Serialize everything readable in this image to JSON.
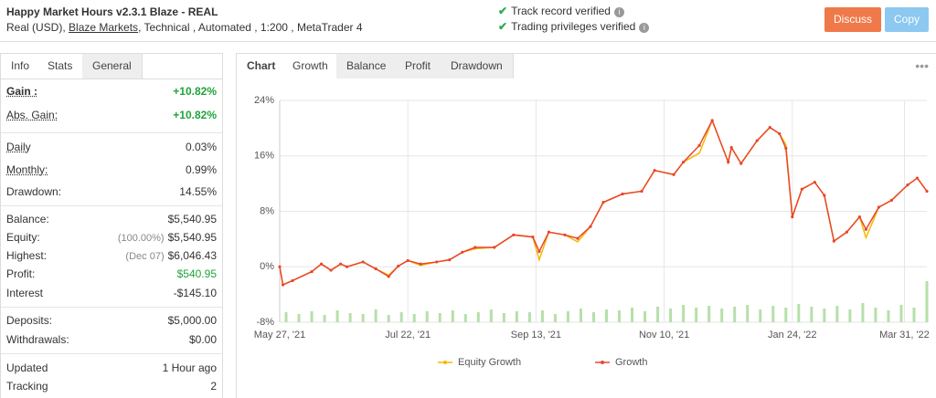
{
  "header": {
    "title": "Happy Market Hours v2.3.1 Blaze - REAL",
    "account": "Real (USD),",
    "broker": "Blaze Markets",
    "details": ", Technical , Automated , 1:200 , MetaTrader 4",
    "verifications": [
      "Track record verified",
      "Trading privileges verified"
    ],
    "buttons": [
      "Discuss",
      "Copy"
    ]
  },
  "left_tabs": [
    "Info",
    "Stats",
    "General"
  ],
  "stats": [
    [
      {
        "label": "Gain :",
        "value": "+10.82%"
      },
      {
        "label": "Abs. Gain:",
        "value": "+10.82%"
      }
    ],
    [
      {
        "label": "Daily",
        "value": "0.03%"
      },
      {
        "label": "Monthly:",
        "value": "0.99%"
      },
      {
        "label": "Drawdown:",
        "value": "14.55%"
      }
    ],
    [
      {
        "label": "Balance:",
        "value": "$5,540.95"
      },
      {
        "label": "Equity:",
        "note": "(100.00%)",
        "value": "$5,540.95"
      },
      {
        "label": "Highest:",
        "note": "(Dec 07)",
        "value": "$6,046.43"
      },
      {
        "label": "Profit:",
        "value": "$540.95"
      },
      {
        "label": "Interest",
        "value": "-$145.10"
      }
    ],
    [
      {
        "label": "Deposits:",
        "value": "$5,000.00"
      },
      {
        "label": "Withdrawals:",
        "value": "$0.00"
      }
    ],
    [
      {
        "label": "Updated",
        "value": "1 Hour ago"
      },
      {
        "label": "Tracking",
        "value": "2"
      }
    ]
  ],
  "chart_tabs": [
    "Chart",
    "Growth",
    "Balance",
    "Profit",
    "Drawdown"
  ],
  "menu": "•••",
  "chart_data": {
    "type": "line",
    "x": [
      0,
      1,
      4,
      10,
      13,
      16,
      19,
      21,
      26,
      30,
      34,
      37,
      40,
      44,
      49,
      53,
      57,
      61,
      67,
      73,
      79,
      81,
      84,
      89,
      93,
      97,
      101,
      107,
      113,
      117,
      123,
      126,
      131,
      135,
      140,
      141,
      144,
      149,
      153,
      156,
      158,
      160,
      163,
      167,
      170,
      173,
      177,
      181,
      183,
      187,
      191,
      196,
      199,
      202
    ],
    "series": [
      {
        "name": "Equity Growth",
        "color": "#f5b800",
        "values": [
          0,
          -2.6,
          -2.0,
          -0.7,
          0.4,
          -0.5,
          0.4,
          0,
          0.7,
          -0.3,
          -1.2,
          0.1,
          0.9,
          0.2,
          0.7,
          1.0,
          2.1,
          2.6,
          2.8,
          4.6,
          4.3,
          1.0,
          5.0,
          4.6,
          3.6,
          5.8,
          9.3,
          10.5,
          10.9,
          13.9,
          13.3,
          15.1,
          16.4,
          21.1,
          15.1,
          17.2,
          14.9,
          18.2,
          20.1,
          19.2,
          17.6,
          7.2,
          11.2,
          12.2,
          10.3,
          3.7,
          5.0,
          7.2,
          4.2,
          8.6,
          9.6,
          11.8,
          12.8,
          10.9
        ]
      },
      {
        "name": "Growth",
        "color": "#e8472d",
        "values": [
          0,
          -2.6,
          -2.0,
          -0.7,
          0.4,
          -0.5,
          0.4,
          0,
          0.7,
          -0.3,
          -1.4,
          0.1,
          0.9,
          0.4,
          0.7,
          1.0,
          2.1,
          2.8,
          2.8,
          4.6,
          4.3,
          2.2,
          5.0,
          4.6,
          4.1,
          5.8,
          9.3,
          10.5,
          10.9,
          13.9,
          13.3,
          15.1,
          17.5,
          21.1,
          15.1,
          17.2,
          14.9,
          18.2,
          20.1,
          19.2,
          17.1,
          7.2,
          11.2,
          12.2,
          10.3,
          3.7,
          5.0,
          7.2,
          5.4,
          8.6,
          9.6,
          11.8,
          12.8,
          10.9
        ]
      }
    ],
    "volume": {
      "color": "#b5e0a8",
      "x": [
        2,
        6,
        10,
        14,
        18,
        22,
        26,
        30,
        34,
        38,
        42,
        46,
        50,
        54,
        58,
        62,
        66,
        70,
        74,
        78,
        82,
        86,
        90,
        94,
        98,
        102,
        106,
        110,
        114,
        118,
        122,
        126,
        130,
        134,
        138,
        142,
        146,
        150,
        154,
        158,
        162,
        166,
        170,
        174,
        178,
        182,
        186,
        190,
        194,
        198,
        202
      ],
      "values": [
        2.2,
        1.8,
        2.4,
        1.6,
        2.6,
        2.0,
        1.8,
        2.8,
        1.6,
        2.2,
        1.8,
        2.4,
        2.0,
        2.6,
        1.8,
        2.2,
        2.8,
        2.0,
        2.4,
        2.2,
        2.6,
        1.8,
        2.4,
        3.0,
        2.2,
        2.8,
        2.6,
        3.2,
        2.4,
        3.4,
        3.0,
        3.8,
        3.2,
        3.6,
        3.0,
        3.4,
        3.8,
        2.8,
        3.6,
        3.2,
        4.0,
        3.4,
        3.0,
        3.6,
        2.8,
        4.2,
        3.2,
        2.6,
        3.8,
        3.2,
        9.0
      ],
      "lim": [
        0,
        10
      ]
    },
    "xlim": [
      0,
      202
    ],
    "xticks": [
      {
        "value": 0,
        "label": "May 27, '21"
      },
      {
        "value": 40,
        "label": "Jul 22, '21"
      },
      {
        "value": 80,
        "label": "Sep 13, '21"
      },
      {
        "value": 120,
        "label": "Nov 10, '21"
      },
      {
        "value": 160,
        "label": "Jan 24, '22"
      },
      {
        "value": 195,
        "label": "Mar 31, '22"
      }
    ],
    "ylim": [
      -8,
      24
    ],
    "yticks": [
      {
        "value": -8,
        "label": "-8%"
      },
      {
        "value": 0,
        "label": "0%"
      },
      {
        "value": 8,
        "label": "8%"
      },
      {
        "value": 16,
        "label": "16%"
      },
      {
        "value": 24,
        "label": "24%"
      }
    ],
    "grid": true,
    "legend": "bottom"
  }
}
